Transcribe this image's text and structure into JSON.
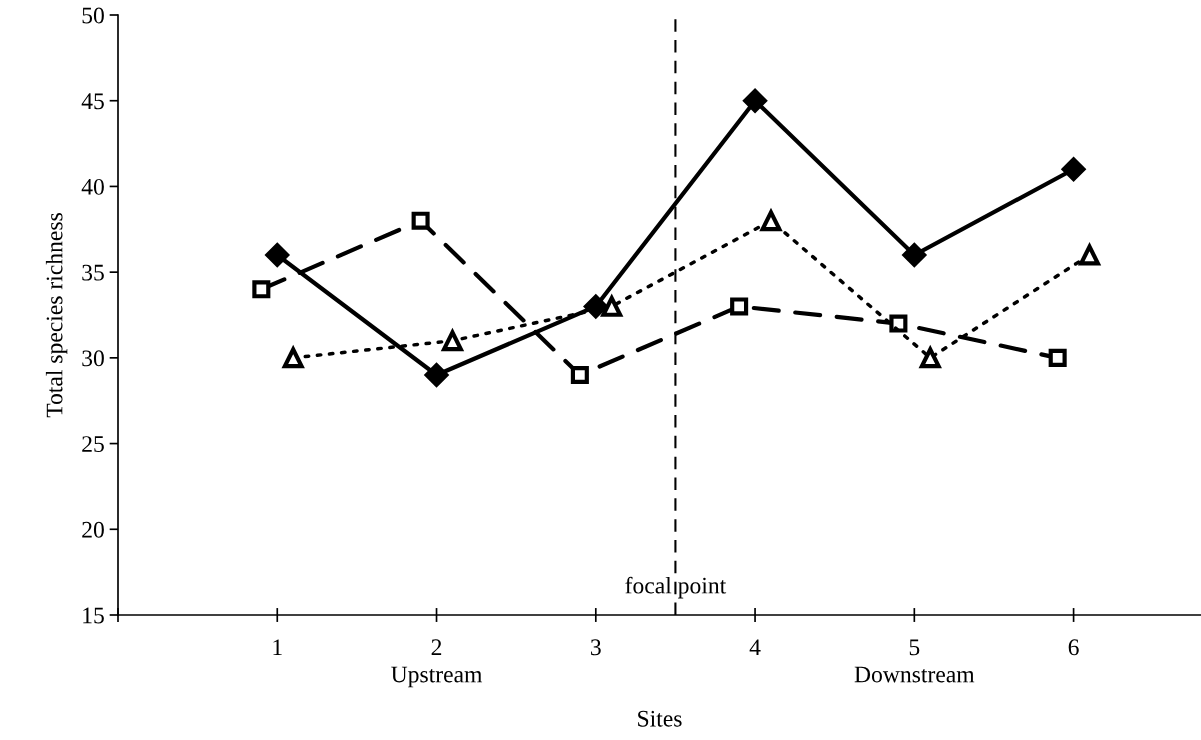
{
  "chart_data": {
    "type": "line",
    "xlabel": "Sites",
    "ylabel": "Total species richness",
    "xlim": [
      0,
      6.8
    ],
    "xticks": [
      {
        "value": 0,
        "label": null
      },
      1,
      2,
      3,
      4,
      5,
      6
    ],
    "ylim": [
      15,
      50
    ],
    "yticks": [
      15,
      20,
      25,
      30,
      35,
      40,
      45,
      50
    ],
    "grid": false,
    "series": [
      {
        "color": "#000000",
        "marker": "diamond",
        "line_style": "solid",
        "x": [
          1,
          2,
          3,
          4,
          5,
          6
        ],
        "values": [
          36,
          29,
          33,
          45,
          36,
          41
        ]
      },
      {
        "color": "#000000",
        "marker": "square",
        "line_style": "dashed",
        "x": [
          0.9,
          1.9,
          2.9,
          3.9,
          4.9,
          5.9
        ],
        "values": [
          34,
          38,
          29,
          33,
          32,
          30
        ]
      },
      {
        "color": "#000000",
        "marker": "triangle",
        "line_style": "dotted",
        "x": [
          1.1,
          2.1,
          3.1,
          4.1,
          5.1,
          6.1
        ],
        "values": [
          30,
          31,
          33,
          38,
          30,
          36
        ]
      }
    ],
    "ref_lines": [
      {
        "axis": "x",
        "value": 3.5,
        "label": "focal point",
        "color": "#000000",
        "line_style": "dashed"
      }
    ],
    "annotations": [
      "Upstream",
      "Downstream"
    ]
  }
}
